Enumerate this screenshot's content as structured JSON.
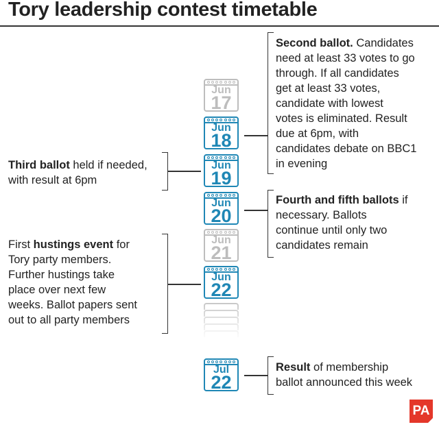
{
  "title": "Tory leadership contest timetable",
  "dates": [
    {
      "month": "Jun",
      "day": "17",
      "state": "inactive"
    },
    {
      "month": "Jun",
      "day": "18",
      "state": "active"
    },
    {
      "month": "Jun",
      "day": "19",
      "state": "active"
    },
    {
      "month": "Jun",
      "day": "20",
      "state": "active"
    },
    {
      "month": "Jun",
      "day": "21",
      "state": "inactive"
    },
    {
      "month": "Jun",
      "day": "22",
      "state": "active"
    },
    {
      "month": "Jul",
      "day": "22",
      "state": "active"
    }
  ],
  "events": {
    "second_ballot": {
      "bold": "Second ballot.",
      "lines": [
        "Candidates",
        "need at least 33 votes to go",
        "through. If all candidates",
        "get at least 33 votes,",
        "candidate with lowest",
        "votes is eliminated. Result",
        "due at 6pm, with",
        "candidates debate on BBC1",
        "in evening"
      ]
    },
    "third_ballot": {
      "bold": "Third ballot",
      "lines": [
        " held if needed,",
        "with result at 6pm"
      ]
    },
    "fourth_fifth": {
      "bold": "Fourth and fifth ballots",
      "lines": [
        " if",
        "necessary. Ballots",
        "continue until only two",
        "candidates remain"
      ]
    },
    "hustings": {
      "pre": "First ",
      "bold": "hustings event",
      "lines": [
        " for",
        "Tory party members.",
        "Further hustings take",
        "place over next few",
        "weeks. Ballot papers sent",
        "out to all party members"
      ]
    },
    "result": {
      "bold": "Result",
      "lines": [
        " of membership",
        "ballot announced this week"
      ]
    }
  },
  "colors": {
    "active": "#1f87b5",
    "inactive": "#bdbdbd",
    "logo": "#e4372a"
  },
  "logo": "PA"
}
